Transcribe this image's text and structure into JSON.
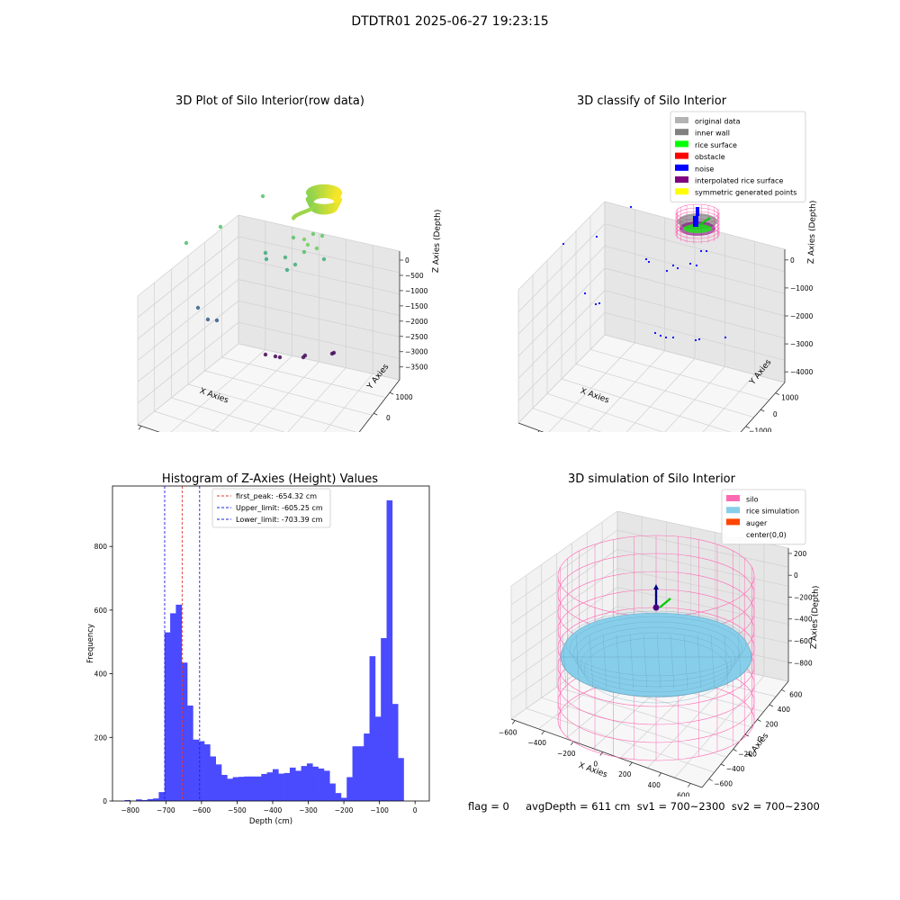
{
  "suptitle": "DTDTR01 2025-06-27 19:23:15",
  "status_line": "flag = 0     avgDepth = 611 cm  sv1 = 700~2300  sv2 = 700~2300",
  "colors": {
    "hist_bar": "#4a4aff",
    "peak_line": "#e23a3a",
    "limit_line": "#1f1fe0",
    "silo": "#ff69b4",
    "rice_sim": "#87ceeb",
    "auger": "#ff4500",
    "pane_left": "#f2f2f2",
    "pane_right": "#e6e6e6",
    "pane_floor": "#f7f7f7",
    "grid": "#d0d0d0"
  },
  "chart_data": [
    {
      "type": "scatter",
      "projection": "3d",
      "title": "3D Plot of Silo Interior(row data)",
      "xlabel": "X Axies",
      "ylabel": "Y Axies",
      "zlabel": "Z Axies (Depth)",
      "xticks": [
        "−4000",
        "−3000",
        "−2000",
        "−1000",
        "0",
        "1000",
        "2000"
      ],
      "yticks": [
        "−3000",
        "−2000",
        "−1000",
        "0",
        "1000"
      ],
      "zticks": [
        "0",
        "−500",
        "−1000",
        "−1500",
        "−2000",
        "−2500",
        "−3000",
        "−3500"
      ],
      "colormap": "viridis",
      "grid": true
    },
    {
      "type": "scatter",
      "projection": "3d",
      "title": "3D classify of Silo Interior",
      "xlabel": "X Axies",
      "ylabel": "Y Axies",
      "zlabel": "Z Axies (Depth)",
      "xticks": [
        "−3000",
        "−2000",
        "−1000",
        "0",
        "1000",
        "2000"
      ],
      "yticks": [
        "−4000",
        "−3000",
        "−2000",
        "−1000",
        "0",
        "1000"
      ],
      "zticks": [
        "0",
        "−1000",
        "−2000",
        "−3000",
        "−4000"
      ],
      "legend_position": "top-right",
      "legend": [
        {
          "label": "original data",
          "color": "#b3b3b3"
        },
        {
          "label": "inner wall",
          "color": "#808080"
        },
        {
          "label": "rice surface",
          "color": "#00ff00"
        },
        {
          "label": "obstacle",
          "color": "#ff0000"
        },
        {
          "label": "noise",
          "color": "#0000ff"
        },
        {
          "label": "interpolated rice surface",
          "color": "#800080"
        },
        {
          "label": "symmetric generated points",
          "color": "#ffff00"
        }
      ],
      "grid": true
    },
    {
      "type": "bar",
      "title": "Histogram of Z-Axies (Height) Values",
      "xlabel": "Depth (cm)",
      "ylabel": "Frequency",
      "xlim": [
        -850,
        40
      ],
      "ylim": [
        0,
        990
      ],
      "xticks": [
        -800,
        -700,
        -600,
        -500,
        -400,
        -300,
        -200,
        -100,
        0
      ],
      "xtick_labels": [
        "−800",
        "−700",
        "−600",
        "−500",
        "−400",
        "−300",
        "−200",
        "−100",
        "0"
      ],
      "yticks": [
        0,
        200,
        400,
        600,
        800
      ],
      "bin_width": 16,
      "bin_start": -816,
      "values": [
        3,
        0,
        5,
        3,
        6,
        8,
        28,
        530,
        590,
        617,
        435,
        300,
        193,
        188,
        178,
        140,
        115,
        82,
        70,
        75,
        76,
        77,
        77,
        77,
        85,
        90,
        100,
        86,
        88,
        105,
        95,
        110,
        118,
        108,
        102,
        95,
        55,
        25,
        10,
        75,
        172,
        172,
        212,
        455,
        265,
        512,
        945,
        305,
        135
      ],
      "vlines": [
        {
          "label": "first_peak: -654.32 cm",
          "x": -654.32,
          "color": "#e23a3a"
        },
        {
          "label": "Upper_limit: -605.25 cm",
          "x": -605.25,
          "color": "#1f1fe0"
        },
        {
          "label": "Lower_limit: -703.39 cm",
          "x": -703.39,
          "color": "#1f1fe0"
        }
      ],
      "legend_position": "upper-center"
    },
    {
      "type": "surface",
      "projection": "3d",
      "title": "3D simulation of Silo Interior",
      "xlabel": "X Axies",
      "ylabel": "Y Axies",
      "zlabel": "Z Axies (Depth)",
      "xticks": [
        "−600",
        "−400",
        "−200",
        "0",
        "200",
        "400",
        "600"
      ],
      "yticks": [
        "−600",
        "−400",
        "−200",
        "0",
        "200",
        "400",
        "600"
      ],
      "zticks": [
        "200",
        "0",
        "−200",
        "−400",
        "−600",
        "−800"
      ],
      "legend_position": "top-right",
      "legend": [
        {
          "label": "silo",
          "color": "#ff69b4"
        },
        {
          "label": "rice simulation",
          "color": "#87ceeb"
        },
        {
          "label": "auger",
          "color": "#ff4500"
        },
        {
          "label": "center(0,0)",
          "color": "#ffffff"
        }
      ],
      "grid": true
    }
  ]
}
